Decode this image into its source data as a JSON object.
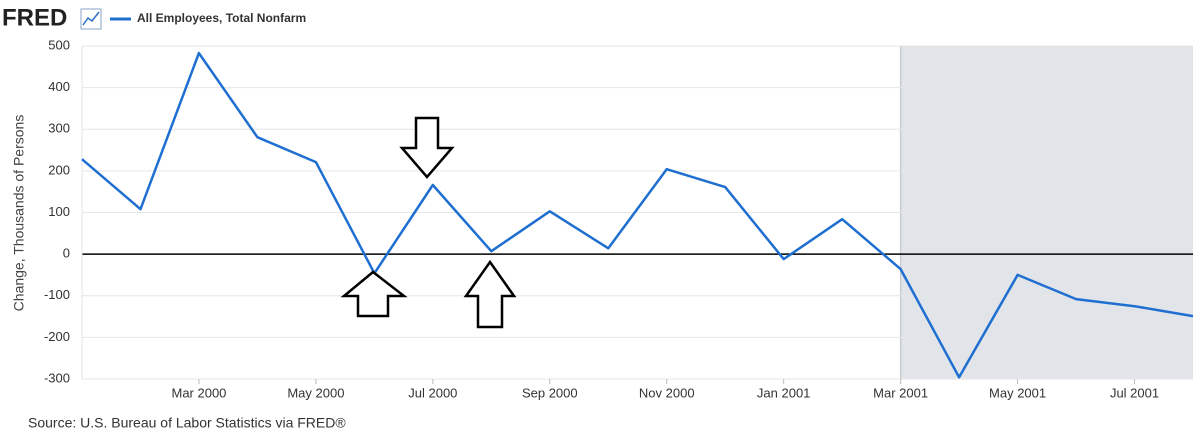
{
  "logo": "FRED",
  "chart_data": {
    "type": "line",
    "y_label": "Change, Thousands of Persons",
    "categories": [
      null,
      null,
      "Mar 2000",
      null,
      "May 2000",
      null,
      "Jul 2000",
      null,
      "Sep 2000",
      null,
      "Nov 2000",
      null,
      "Jan 2001",
      null,
      "Mar 2001",
      null,
      "May 2001",
      null,
      "Jul 2001",
      null
    ],
    "series": [
      {
        "name": "All Employees, Total Nonfarm",
        "color": "#1f6fd1",
        "values": [
          228,
          108,
          483,
          281,
          221,
          -46,
          166,
          7,
          103,
          14,
          204,
          161,
          -12,
          84,
          -36,
          -296,
          -50,
          -108,
          -125,
          -149
        ]
      }
    ],
    "ylim": [
      -300,
      500
    ],
    "yticks": [
      500,
      400,
      300,
      200,
      100,
      0,
      -100,
      -200,
      -300
    ],
    "grid": true,
    "shaded_from": 14,
    "shade_color": "#e1e5ea"
  },
  "source": "Source: U.S. Bureau of Labor Statistics via FRED®"
}
